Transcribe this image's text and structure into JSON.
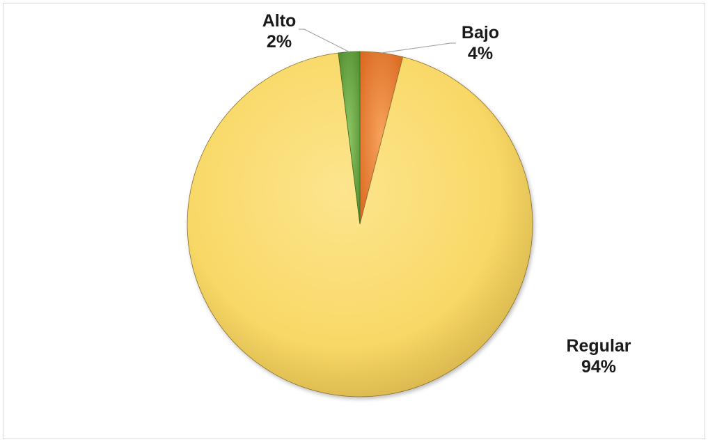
{
  "chart_data": {
    "type": "pie",
    "title": "",
    "legend": "none",
    "slices": [
      {
        "label": "Bajo",
        "value": 4,
        "percent_label": "4%",
        "color": "#ed7d31"
      },
      {
        "label": "Regular",
        "value": 94,
        "percent_label": "94%",
        "color": "#ffd966"
      },
      {
        "label": "Alto",
        "value": 2,
        "percent_label": "2%",
        "color": "#70ad47"
      }
    ]
  }
}
